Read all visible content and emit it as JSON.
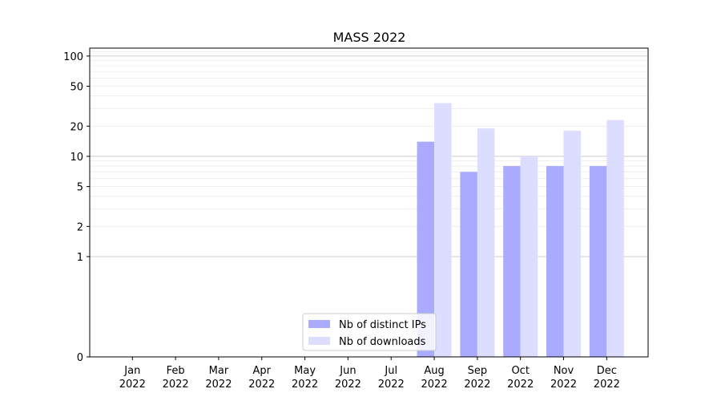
{
  "chart_data": {
    "type": "bar",
    "title": "MASS 2022",
    "xlabel": "",
    "ylabel": "",
    "yscale": "symlog",
    "ylim": [
      0,
      120
    ],
    "y_ticks": [
      {
        "value": 0,
        "label": "0"
      },
      {
        "value": 1,
        "label": "1"
      },
      {
        "value": 2,
        "label": "2"
      },
      {
        "value": 5,
        "label": "5"
      },
      {
        "value": 10,
        "label": "10"
      },
      {
        "value": 20,
        "label": "20"
      },
      {
        "value": 50,
        "label": "50"
      },
      {
        "value": 100,
        "label": "100"
      }
    ],
    "categories": [
      {
        "month": "Jan",
        "year": "2022"
      },
      {
        "month": "Feb",
        "year": "2022"
      },
      {
        "month": "Mar",
        "year": "2022"
      },
      {
        "month": "Apr",
        "year": "2022"
      },
      {
        "month": "May",
        "year": "2022"
      },
      {
        "month": "Jun",
        "year": "2022"
      },
      {
        "month": "Jul",
        "year": "2022"
      },
      {
        "month": "Aug",
        "year": "2022"
      },
      {
        "month": "Sep",
        "year": "2022"
      },
      {
        "month": "Oct",
        "year": "2022"
      },
      {
        "month": "Nov",
        "year": "2022"
      },
      {
        "month": "Dec",
        "year": "2022"
      }
    ],
    "series": [
      {
        "name": "Nb of distinct IPs",
        "color": "#aaaaff",
        "values": [
          0,
          0,
          0,
          0,
          0,
          0,
          0,
          14,
          7,
          8,
          8,
          8
        ]
      },
      {
        "name": "Nb of downloads",
        "color": "#ddddff",
        "values": [
          0,
          0,
          0,
          0,
          0,
          0,
          0,
          34,
          19,
          10,
          18,
          23
        ]
      }
    ],
    "grid": true,
    "legend_position": "bottom-center"
  }
}
